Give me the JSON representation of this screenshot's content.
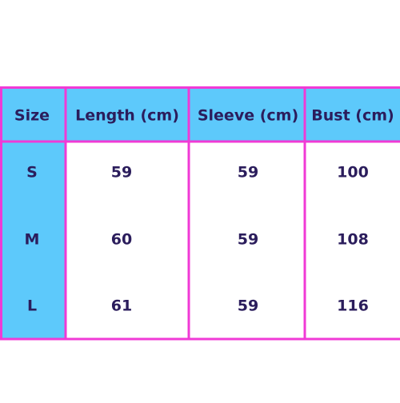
{
  "table": {
    "header": [
      "Size",
      "Length (cm)",
      "Sleeve (cm)",
      "Bust (cm)"
    ],
    "rows": [
      [
        "S",
        59,
        59,
        100
      ],
      [
        "M",
        60,
        59,
        108
      ],
      [
        "L",
        61,
        59,
        116
      ]
    ]
  }
}
